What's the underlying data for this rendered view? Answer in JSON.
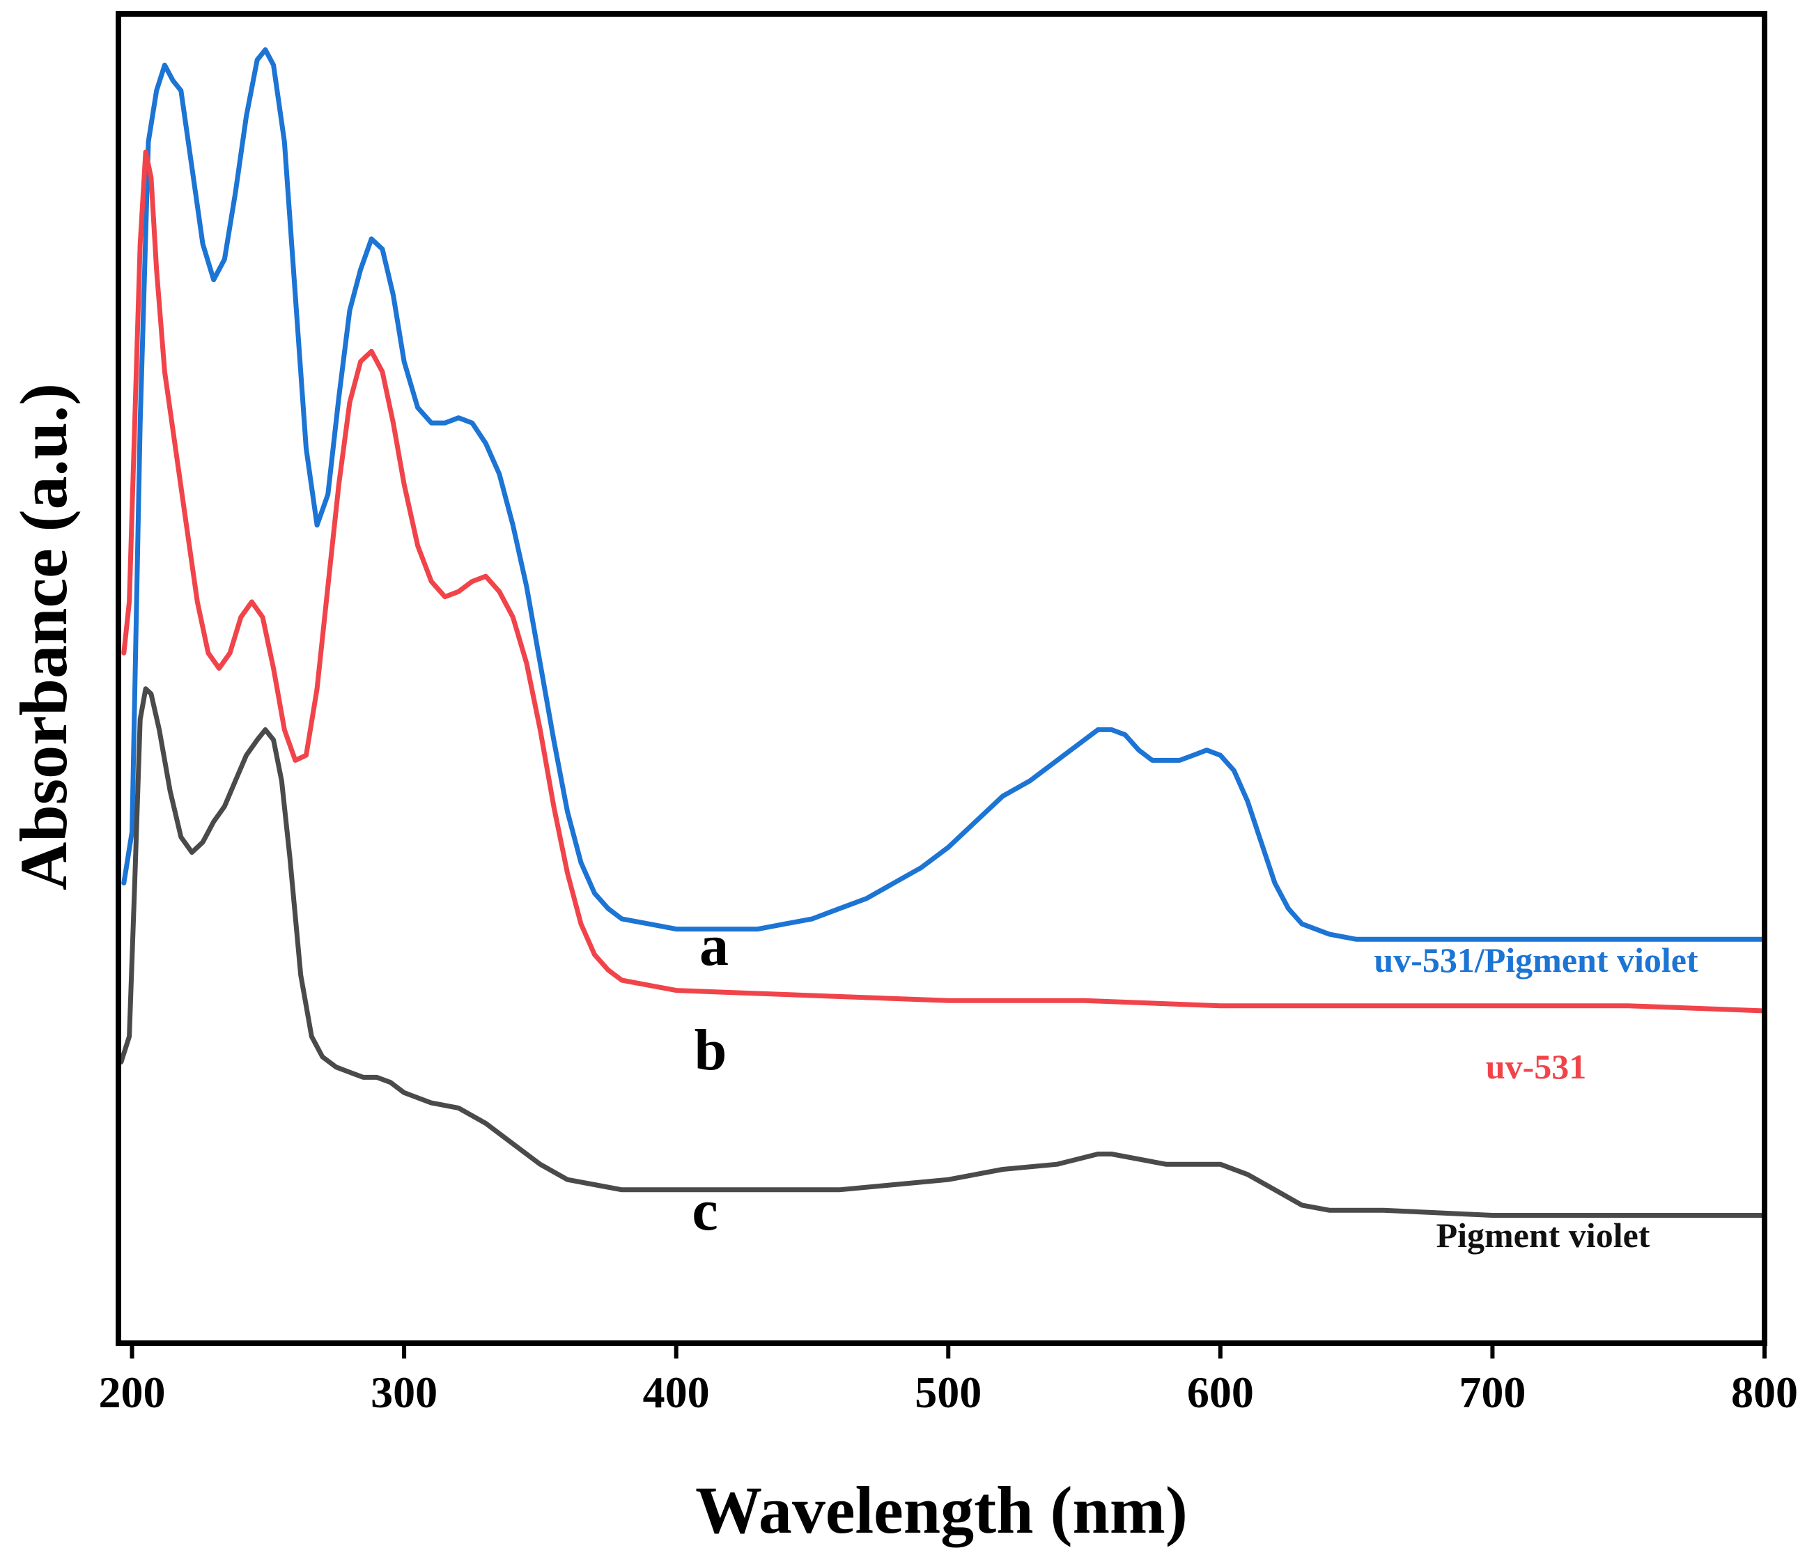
{
  "chart_data": {
    "type": "line",
    "title": "",
    "xlabel": "Wavelength (nm)",
    "ylabel": "Absorbance (a.u.)",
    "xlim": [
      195,
      800
    ],
    "ylim": [
      0,
      2.6
    ],
    "x_ticks": [
      200,
      300,
      400,
      500,
      600,
      700,
      800
    ],
    "y_ticks": [],
    "grid": false,
    "series": [
      {
        "name": "uv-531/Pigment violet",
        "letter": "a",
        "color": "#1c74d4",
        "points": [
          [
            197,
            0.9
          ],
          [
            200,
            1.0
          ],
          [
            203,
            1.8
          ],
          [
            206,
            2.35
          ],
          [
            209,
            2.45
          ],
          [
            212,
            2.5
          ],
          [
            215,
            2.47
          ],
          [
            218,
            2.45
          ],
          [
            222,
            2.3
          ],
          [
            226,
            2.15
          ],
          [
            230,
            2.08
          ],
          [
            234,
            2.12
          ],
          [
            238,
            2.25
          ],
          [
            242,
            2.4
          ],
          [
            246,
            2.51
          ],
          [
            249,
            2.53
          ],
          [
            252,
            2.5
          ],
          [
            256,
            2.35
          ],
          [
            260,
            2.05
          ],
          [
            264,
            1.75
          ],
          [
            268,
            1.6
          ],
          [
            272,
            1.66
          ],
          [
            276,
            1.85
          ],
          [
            280,
            2.02
          ],
          [
            284,
            2.1
          ],
          [
            288,
            2.16
          ],
          [
            292,
            2.14
          ],
          [
            296,
            2.05
          ],
          [
            300,
            1.92
          ],
          [
            305,
            1.83
          ],
          [
            310,
            1.8
          ],
          [
            315,
            1.8
          ],
          [
            320,
            1.81
          ],
          [
            325,
            1.8
          ],
          [
            330,
            1.76
          ],
          [
            335,
            1.7
          ],
          [
            340,
            1.6
          ],
          [
            345,
            1.48
          ],
          [
            350,
            1.33
          ],
          [
            355,
            1.18
          ],
          [
            360,
            1.04
          ],
          [
            365,
            0.94
          ],
          [
            370,
            0.88
          ],
          [
            375,
            0.85
          ],
          [
            380,
            0.83
          ],
          [
            390,
            0.82
          ],
          [
            400,
            0.81
          ],
          [
            410,
            0.81
          ],
          [
            420,
            0.81
          ],
          [
            430,
            0.81
          ],
          [
            440,
            0.82
          ],
          [
            450,
            0.83
          ],
          [
            460,
            0.85
          ],
          [
            470,
            0.87
          ],
          [
            480,
            0.9
          ],
          [
            490,
            0.93
          ],
          [
            500,
            0.97
          ],
          [
            510,
            1.02
          ],
          [
            520,
            1.07
          ],
          [
            530,
            1.1
          ],
          [
            540,
            1.14
          ],
          [
            550,
            1.18
          ],
          [
            555,
            1.2
          ],
          [
            560,
            1.2
          ],
          [
            565,
            1.19
          ],
          [
            570,
            1.16
          ],
          [
            575,
            1.14
          ],
          [
            580,
            1.14
          ],
          [
            585,
            1.14
          ],
          [
            590,
            1.15
          ],
          [
            595,
            1.16
          ],
          [
            600,
            1.15
          ],
          [
            605,
            1.12
          ],
          [
            610,
            1.06
          ],
          [
            615,
            0.98
          ],
          [
            620,
            0.9
          ],
          [
            625,
            0.85
          ],
          [
            630,
            0.82
          ],
          [
            640,
            0.8
          ],
          [
            650,
            0.79
          ],
          [
            660,
            0.79
          ],
          [
            680,
            0.79
          ],
          [
            700,
            0.79
          ],
          [
            720,
            0.79
          ],
          [
            750,
            0.79
          ],
          [
            780,
            0.79
          ],
          [
            800,
            0.79
          ]
        ]
      },
      {
        "name": "uv-531",
        "letter": "b",
        "color": "#f0444a",
        "points": [
          [
            197,
            1.35
          ],
          [
            199,
            1.45
          ],
          [
            201,
            1.8
          ],
          [
            203,
            2.15
          ],
          [
            205,
            2.33
          ],
          [
            207,
            2.28
          ],
          [
            209,
            2.1
          ],
          [
            212,
            1.9
          ],
          [
            216,
            1.75
          ],
          [
            220,
            1.6
          ],
          [
            224,
            1.45
          ],
          [
            228,
            1.35
          ],
          [
            232,
            1.32
          ],
          [
            236,
            1.35
          ],
          [
            240,
            1.42
          ],
          [
            244,
            1.45
          ],
          [
            248,
            1.42
          ],
          [
            252,
            1.32
          ],
          [
            256,
            1.2
          ],
          [
            260,
            1.14
          ],
          [
            264,
            1.15
          ],
          [
            268,
            1.28
          ],
          [
            272,
            1.48
          ],
          [
            276,
            1.68
          ],
          [
            280,
            1.84
          ],
          [
            284,
            1.92
          ],
          [
            288,
            1.94
          ],
          [
            292,
            1.9
          ],
          [
            296,
            1.8
          ],
          [
            300,
            1.68
          ],
          [
            305,
            1.56
          ],
          [
            310,
            1.49
          ],
          [
            315,
            1.46
          ],
          [
            320,
            1.47
          ],
          [
            325,
            1.49
          ],
          [
            330,
            1.5
          ],
          [
            335,
            1.47
          ],
          [
            340,
            1.42
          ],
          [
            345,
            1.33
          ],
          [
            350,
            1.2
          ],
          [
            355,
            1.05
          ],
          [
            360,
            0.92
          ],
          [
            365,
            0.82
          ],
          [
            370,
            0.76
          ],
          [
            375,
            0.73
          ],
          [
            380,
            0.71
          ],
          [
            390,
            0.7
          ],
          [
            400,
            0.69
          ],
          [
            450,
            0.68
          ],
          [
            500,
            0.67
          ],
          [
            550,
            0.67
          ],
          [
            600,
            0.66
          ],
          [
            650,
            0.66
          ],
          [
            700,
            0.66
          ],
          [
            750,
            0.66
          ],
          [
            800,
            0.65
          ]
        ]
      },
      {
        "name": "Pigment violet",
        "letter": "c",
        "color": "#4a4a4a",
        "points": [
          [
            196,
            0.55
          ],
          [
            199,
            0.6
          ],
          [
            201,
            0.9
          ],
          [
            203,
            1.22
          ],
          [
            205,
            1.28
          ],
          [
            207,
            1.27
          ],
          [
            210,
            1.2
          ],
          [
            214,
            1.08
          ],
          [
            218,
            0.99
          ],
          [
            222,
            0.96
          ],
          [
            226,
            0.98
          ],
          [
            230,
            1.02
          ],
          [
            234,
            1.05
          ],
          [
            238,
            1.1
          ],
          [
            242,
            1.15
          ],
          [
            246,
            1.18
          ],
          [
            249,
            1.2
          ],
          [
            252,
            1.18
          ],
          [
            255,
            1.1
          ],
          [
            258,
            0.95
          ],
          [
            262,
            0.72
          ],
          [
            266,
            0.6
          ],
          [
            270,
            0.56
          ],
          [
            275,
            0.54
          ],
          [
            280,
            0.53
          ],
          [
            285,
            0.52
          ],
          [
            290,
            0.52
          ],
          [
            295,
            0.51
          ],
          [
            300,
            0.49
          ],
          [
            310,
            0.47
          ],
          [
            320,
            0.46
          ],
          [
            330,
            0.43
          ],
          [
            340,
            0.39
          ],
          [
            350,
            0.35
          ],
          [
            360,
            0.32
          ],
          [
            370,
            0.31
          ],
          [
            380,
            0.3
          ],
          [
            400,
            0.3
          ],
          [
            420,
            0.3
          ],
          [
            440,
            0.3
          ],
          [
            460,
            0.3
          ],
          [
            480,
            0.31
          ],
          [
            500,
            0.32
          ],
          [
            520,
            0.34
          ],
          [
            540,
            0.35
          ],
          [
            555,
            0.37
          ],
          [
            560,
            0.37
          ],
          [
            570,
            0.36
          ],
          [
            580,
            0.35
          ],
          [
            590,
            0.35
          ],
          [
            600,
            0.35
          ],
          [
            610,
            0.33
          ],
          [
            620,
            0.3
          ],
          [
            630,
            0.27
          ],
          [
            640,
            0.26
          ],
          [
            660,
            0.26
          ],
          [
            700,
            0.25
          ],
          [
            750,
            0.25
          ],
          [
            800,
            0.25
          ]
        ]
      }
    ]
  }
}
